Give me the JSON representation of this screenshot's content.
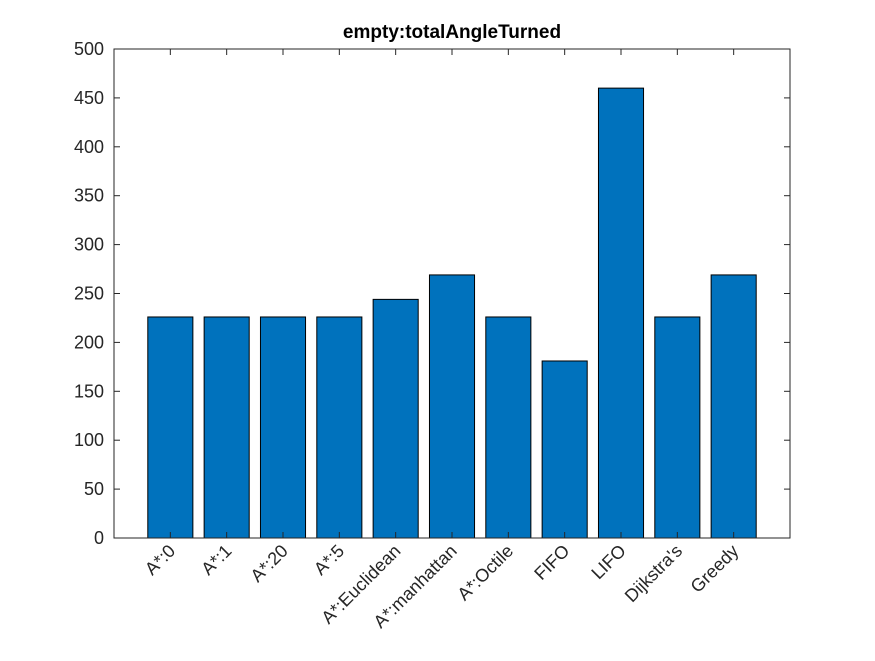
{
  "chart_data": {
    "type": "bar",
    "title": "empty:totalAngleTurned",
    "xlabel": "",
    "ylabel": "",
    "categories": [
      "A*:0",
      "A*:1",
      "A*:20",
      "A*:5",
      "A*:Euclidean",
      "A*:manhattan",
      "A*:Octile",
      "FIFO",
      "LIFO",
      "Dijkstra's",
      "Greedy"
    ],
    "values": [
      226,
      226,
      226,
      226,
      244,
      269,
      226,
      181,
      460,
      226,
      269
    ],
    "ylim": [
      0,
      500
    ],
    "yticks": [
      0,
      50,
      100,
      150,
      200,
      250,
      300,
      350,
      400,
      450,
      500
    ],
    "grid": false,
    "bar_color": "#0072BD",
    "bar_edge_color": "#000000"
  }
}
